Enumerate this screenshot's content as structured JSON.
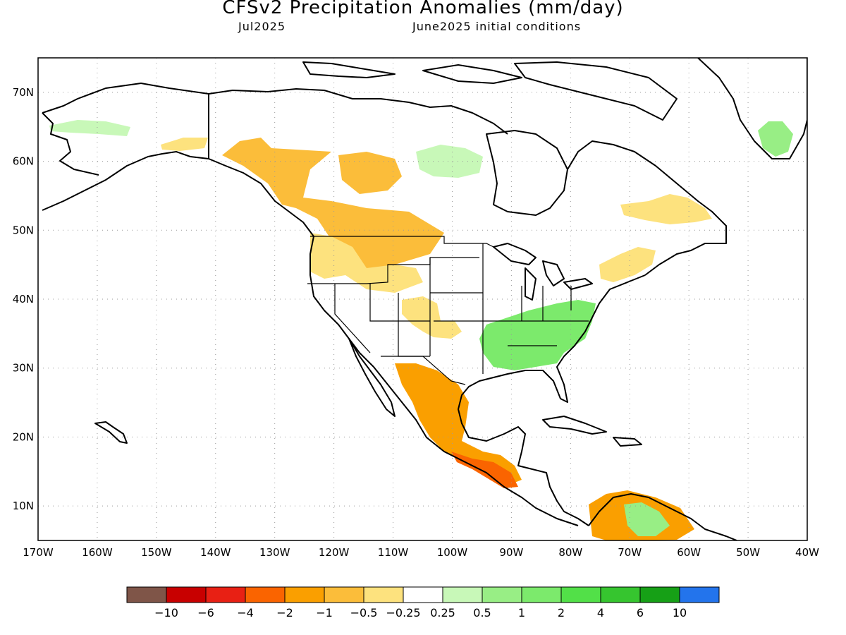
{
  "title": "CFSv2 Precipitation Anomalies (mm/day)",
  "subtitle_left": "Jul2025",
  "subtitle_right": "June2025 initial conditions",
  "map": {
    "lon_range": [
      -170,
      -40
    ],
    "lat_range": [
      5,
      75
    ],
    "lon_ticks": [
      "170W",
      "160W",
      "150W",
      "140W",
      "130W",
      "120W",
      "110W",
      "100W",
      "90W",
      "80W",
      "70W",
      "60W",
      "50W",
      "40W"
    ],
    "lat_ticks": [
      "10N",
      "20N",
      "30N",
      "40N",
      "50N",
      "60N",
      "70N"
    ],
    "grid": "dotted"
  },
  "colorbar": {
    "colors": [
      "#7f5548",
      "#c80000",
      "#e82014",
      "#fa6400",
      "#fa9f00",
      "#fbbd3a",
      "#fde27e",
      "#ffffff",
      "#c8f8b8",
      "#98ee85",
      "#7cea6c",
      "#52e048",
      "#36c52f",
      "#16a016",
      "#2374ec"
    ],
    "labels": [
      "−10",
      "−6",
      "−4",
      "−2",
      "−1",
      "−0.5",
      "−0.25",
      "0.25",
      "0.5",
      "1",
      "2",
      "4",
      "6",
      "10"
    ]
  },
  "regions": [
    {
      "name": "alaska-west-wet",
      "color": "#c8f8b8"
    },
    {
      "name": "yukon-dry",
      "color": "#fde27e"
    },
    {
      "name": "bc-dry",
      "color": "#fbbd3a"
    },
    {
      "name": "prairies-dry",
      "color": "#fbbd3a"
    },
    {
      "name": "pacific-northwest-dry",
      "color": "#fde27e"
    },
    {
      "name": "great-basin-dry",
      "color": "#fde27e"
    },
    {
      "name": "southeast-us-wet",
      "color": "#7cea6c"
    },
    {
      "name": "mexico-dry",
      "color": "#fa9f00"
    },
    {
      "name": "central-america-dry",
      "color": "#fa6400"
    },
    {
      "name": "south-america-north-dry",
      "color": "#fa9f00"
    },
    {
      "name": "south-america-north-wet",
      "color": "#98ee85"
    },
    {
      "name": "greenland-wet",
      "color": "#98ee85"
    },
    {
      "name": "hudson-bay-wet",
      "color": "#c8f8b8"
    },
    {
      "name": "labrador-dry",
      "color": "#fde27e"
    },
    {
      "name": "new-england-dry",
      "color": "#fde27e"
    }
  ]
}
